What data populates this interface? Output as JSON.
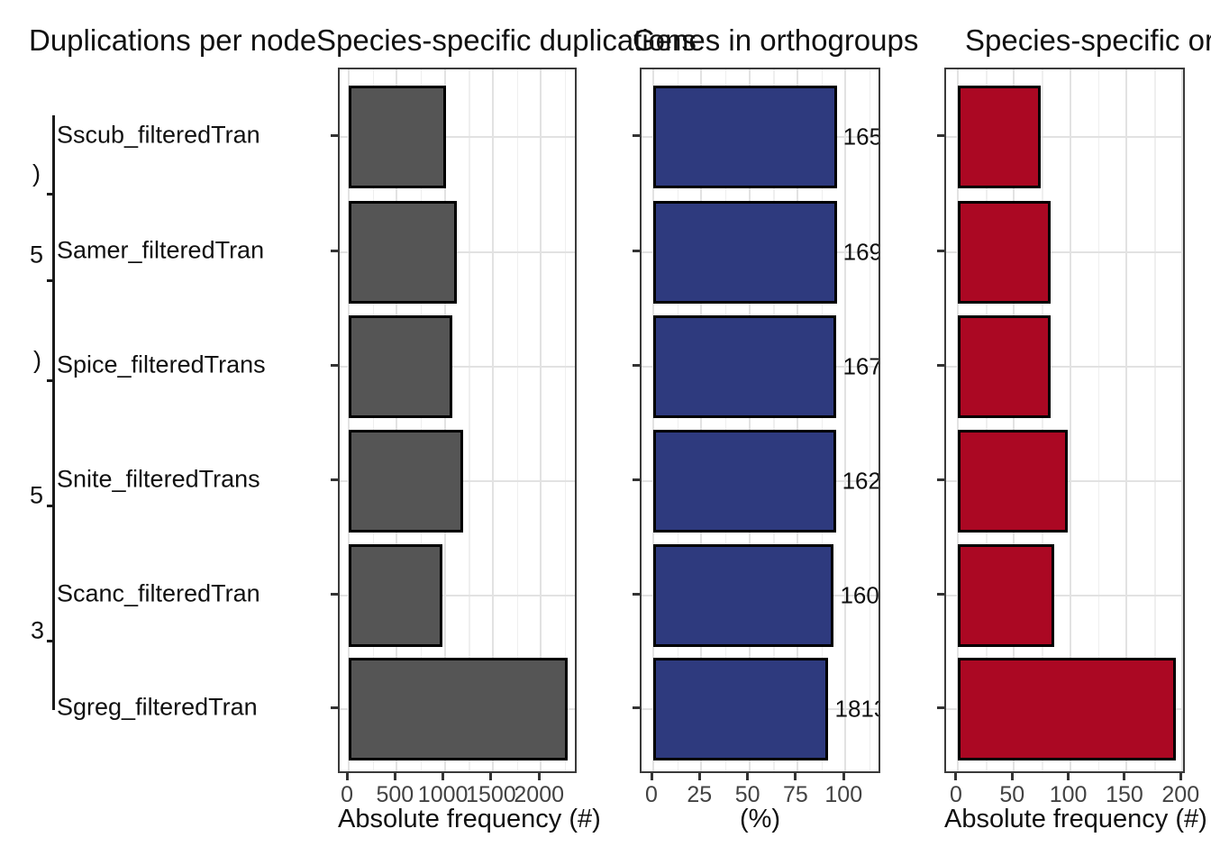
{
  "titles": [
    "Duplications per node",
    "Species-specific duplications",
    "Genes in orthogroups",
    "Species-specific orthogroups"
  ],
  "tree": {
    "species": [
      "Sscub_filteredTran",
      "Samer_filteredTran",
      "Spice_filteredTrans",
      "Snite_filteredTrans",
      "Scanc_filteredTran",
      "Sgreg_filteredTran"
    ],
    "node_label_fragments": [
      ")",
      "5",
      ")",
      "5",
      "3"
    ]
  },
  "colors": {
    "duplication_bars": "#555555",
    "genes_bars": "#2E3A7E",
    "orthogroup_bars": "#AB0823",
    "bar_stroke": "#000000",
    "panel_border": "#3a3a3a",
    "grid_major": "#e2e2e2",
    "grid_minor": "#efefef",
    "tick_text": "#424242"
  },
  "chart_data": [
    {
      "type": "bar",
      "orientation": "horizontal",
      "title": "Species-specific duplications",
      "categories": [
        "Sscub_filteredTran",
        "Samer_filteredTran",
        "Spice_filteredTrans",
        "Snite_filteredTrans",
        "Scanc_filteredTran",
        "Sgreg_filteredTran"
      ],
      "values": [
        1010,
        1130,
        1080,
        1190,
        980,
        2280
      ],
      "xlabel": "Absolute frequency (#)",
      "xticks": [
        0,
        500,
        1000,
        1500,
        2000
      ],
      "xlim": [
        -94,
        2392
      ],
      "grid": true,
      "color_key": "duplication_bars"
    },
    {
      "type": "bar",
      "orientation": "horizontal",
      "title": "Genes in orthogroups",
      "categories": [
        "Sscub_filteredTran",
        "Samer_filteredTran",
        "Spice_filteredTrans",
        "Snite_filteredTrans",
        "Scanc_filteredTran",
        "Sgreg_filteredTran"
      ],
      "values": [
        95.5,
        95.5,
        95.4,
        95.0,
        94.0,
        91.2
      ],
      "value_labels": [
        "165",
        "169",
        "167",
        "162",
        "160",
        "1813"
      ],
      "xlabel": "(%)",
      "xticks": [
        0,
        25,
        50,
        75,
        100
      ],
      "xlim": [
        -6.1,
        119.1
      ],
      "grid": true,
      "color_key": "genes_bars"
    },
    {
      "type": "bar",
      "orientation": "horizontal",
      "title": "Species-specific orthogroups",
      "categories": [
        "Sscub_filteredTran",
        "Samer_filteredTran",
        "Spice_filteredTrans",
        "Snite_filteredTrans",
        "Scanc_filteredTran",
        "Sgreg_filteredTran"
      ],
      "values": [
        74,
        83,
        83,
        98,
        86,
        194
      ],
      "xlabel": "Absolute frequency (#)",
      "xticks": [
        0,
        50,
        100,
        150,
        200
      ],
      "xlim": [
        -10.4,
        203.8
      ],
      "grid": true,
      "color_key": "orthogroup_bars"
    }
  ]
}
